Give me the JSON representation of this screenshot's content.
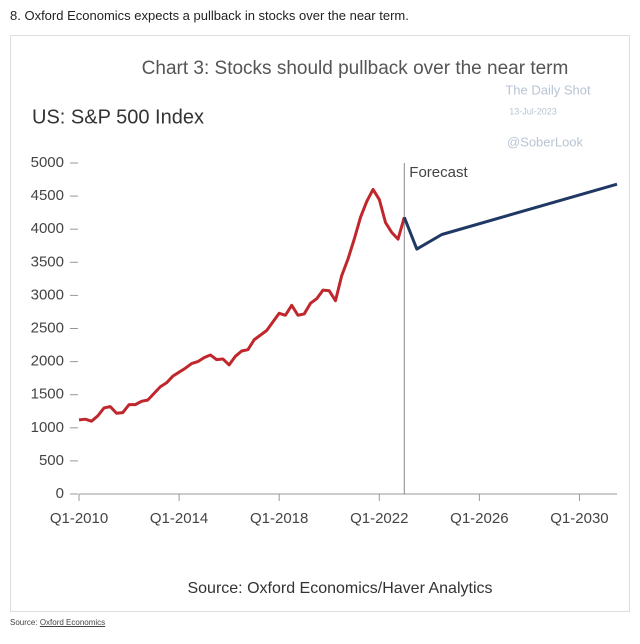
{
  "caption": "8. Oxford Economics expects a pullback in stocks over the near term.",
  "chart_data": {
    "type": "line",
    "title": "Chart 3: Stocks should pullback over the near term",
    "subtitle": "US: S&P 500 Index",
    "watermark": [
      "The Daily Shot",
      "13-Jul-2023",
      "@SoberLook"
    ],
    "annotation": {
      "text": "Forecast",
      "x": 2023.0
    },
    "source": "Source: Oxford Economics/Haver Analytics",
    "xlim": [
      2010,
      2031.5
    ],
    "xticks": [
      {
        "value": 2010,
        "label": "Q1-2010"
      },
      {
        "value": 2014,
        "label": "Q1-2014"
      },
      {
        "value": 2018,
        "label": "Q1-2018"
      },
      {
        "value": 2022,
        "label": "Q1-2022"
      },
      {
        "value": 2026,
        "label": "Q1-2026"
      },
      {
        "value": 2030,
        "label": "Q1-2030"
      }
    ],
    "ylim": [
      0,
      5000
    ],
    "yticks": [
      0,
      500,
      1000,
      1500,
      2000,
      2500,
      3000,
      3500,
      4000,
      4500,
      5000
    ],
    "series": [
      {
        "color": "#c0272d",
        "x": [
          2010,
          2010.25,
          2010.5,
          2010.75,
          2011,
          2011.25,
          2011.5,
          2011.75,
          2012,
          2012.25,
          2012.5,
          2012.75,
          2013,
          2013.25,
          2013.5,
          2013.75,
          2014,
          2014.25,
          2014.5,
          2014.75,
          2015,
          2015.25,
          2015.5,
          2015.75,
          2016,
          2016.25,
          2016.5,
          2016.75,
          2017,
          2017.25,
          2017.5,
          2017.75,
          2018,
          2018.25,
          2018.5,
          2018.75,
          2019,
          2019.25,
          2019.5,
          2019.75,
          2020,
          2020.25,
          2020.5,
          2020.75,
          2021,
          2021.25,
          2021.5,
          2021.75,
          2022,
          2022.25,
          2022.5,
          2022.75,
          2023
        ],
        "values": [
          1120,
          1130,
          1100,
          1180,
          1300,
          1320,
          1220,
          1230,
          1350,
          1350,
          1400,
          1420,
          1520,
          1620,
          1680,
          1780,
          1840,
          1900,
          1970,
          2000,
          2060,
          2100,
          2030,
          2040,
          1950,
          2080,
          2160,
          2180,
          2330,
          2400,
          2470,
          2600,
          2730,
          2700,
          2850,
          2700,
          2720,
          2880,
          2950,
          3080,
          3070,
          2920,
          3300,
          3550,
          3850,
          4180,
          4420,
          4600,
          4450,
          4100,
          3950,
          3850,
          4180
        ]
      },
      {
        "color": "#1f3864",
        "x": [
          2023,
          2023.5,
          2024.5,
          2031.5
        ],
        "values": [
          4180,
          3700,
          3920,
          4680
        ]
      }
    ]
  },
  "source_prefix": "Source:",
  "source_link": "Oxford Economics"
}
